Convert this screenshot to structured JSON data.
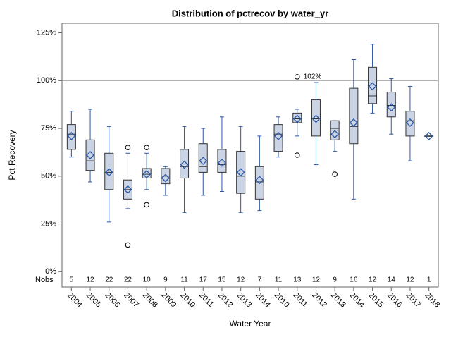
{
  "chart_data": {
    "type": "box",
    "title": "Distribution of pctrecov by water_yr",
    "x_label": "Water Year",
    "y_label": "Pct Recovery",
    "categories": [
      "2004",
      "2005",
      "2006",
      "2007",
      "2008",
      "2009",
      "2010",
      "2011",
      "2012",
      "2013",
      "2014",
      "2010",
      "2011",
      "2012",
      "2013",
      "2014",
      "2015",
      "2016",
      "2017",
      "2018"
    ],
    "boxes": [
      {
        "low": 60,
        "q1": 64,
        "median": 72,
        "q3": 77,
        "high": 84,
        "mean": 71
      },
      {
        "low": 47,
        "q1": 53,
        "median": 58,
        "q3": 69,
        "high": 85,
        "mean": 61
      },
      {
        "low": 26,
        "q1": 43,
        "median": 52,
        "q3": 62,
        "high": 76,
        "mean": 52
      },
      {
        "low": 33,
        "q1": 38,
        "median": 43,
        "q3": 48,
        "high": 62,
        "mean": 43,
        "outliers": [
          65,
          14
        ]
      },
      {
        "low": 43,
        "q1": 49,
        "median": 51,
        "q3": 54,
        "high": 62,
        "mean": 51,
        "outliers": [
          65,
          35
        ]
      },
      {
        "low": 40,
        "q1": 46,
        "median": 50,
        "q3": 54,
        "high": 55,
        "mean": 49
      },
      {
        "low": 31,
        "q1": 49,
        "median": 55,
        "q3": 64,
        "high": 76,
        "mean": 56
      },
      {
        "low": 40,
        "q1": 52,
        "median": 55,
        "q3": 67,
        "high": 75,
        "mean": 58
      },
      {
        "low": 42,
        "q1": 52,
        "median": 56,
        "q3": 64,
        "high": 81,
        "mean": 57
      },
      {
        "low": 31,
        "q1": 41,
        "median": 50,
        "q3": 63,
        "high": 76,
        "mean": 52
      },
      {
        "low": 32,
        "q1": 38,
        "median": 47,
        "q3": 55,
        "high": 71,
        "mean": 48
      },
      {
        "low": 60,
        "q1": 63,
        "median": 72,
        "q3": 77,
        "high": 81,
        "mean": 71
      },
      {
        "low": 71,
        "q1": 78,
        "median": 80,
        "q3": 83,
        "high": 85,
        "mean": 80,
        "outliers": [
          102,
          61
        ],
        "outlier_labels": [
          "102%",
          null
        ]
      },
      {
        "low": 56,
        "q1": 71,
        "median": 80,
        "q3": 90,
        "high": 99,
        "mean": 80
      },
      {
        "low": 63,
        "q1": 69,
        "median": 75,
        "q3": 79,
        "high": 79,
        "mean": 72,
        "outliers": [
          51
        ]
      },
      {
        "low": 38,
        "q1": 67,
        "median": 76,
        "q3": 96,
        "high": 111,
        "mean": 78
      },
      {
        "low": 83,
        "q1": 88,
        "median": 92,
        "q3": 107,
        "high": 119,
        "mean": 97
      },
      {
        "low": 72,
        "q1": 81,
        "median": 87,
        "q3": 94,
        "high": 101,
        "mean": 86
      },
      {
        "low": 58,
        "q1": 71,
        "median": 79,
        "q3": 84,
        "high": 97,
        "mean": 78
      },
      {
        "low": 71,
        "q1": 71,
        "median": 71,
        "q3": 71,
        "high": 71,
        "mean": 71
      }
    ],
    "nobs_label": "Nobs",
    "nobs": [
      5,
      12,
      22,
      22,
      10,
      9,
      11,
      17,
      15,
      12,
      7,
      11,
      13,
      12,
      9,
      16,
      12,
      14,
      12,
      1
    ],
    "reflines": [
      100
    ],
    "ylim": [
      -8,
      130
    ],
    "yticks": [
      {
        "value": 0,
        "label": "0%"
      },
      {
        "value": 25,
        "label": "25%"
      },
      {
        "value": 50,
        "label": "50%"
      },
      {
        "value": 75,
        "label": "75%"
      },
      {
        "value": 100,
        "label": "100%"
      },
      {
        "value": 125,
        "label": "125%"
      }
    ],
    "box_color": "#cbd4e4",
    "whisker_color": "#2a57a6"
  }
}
